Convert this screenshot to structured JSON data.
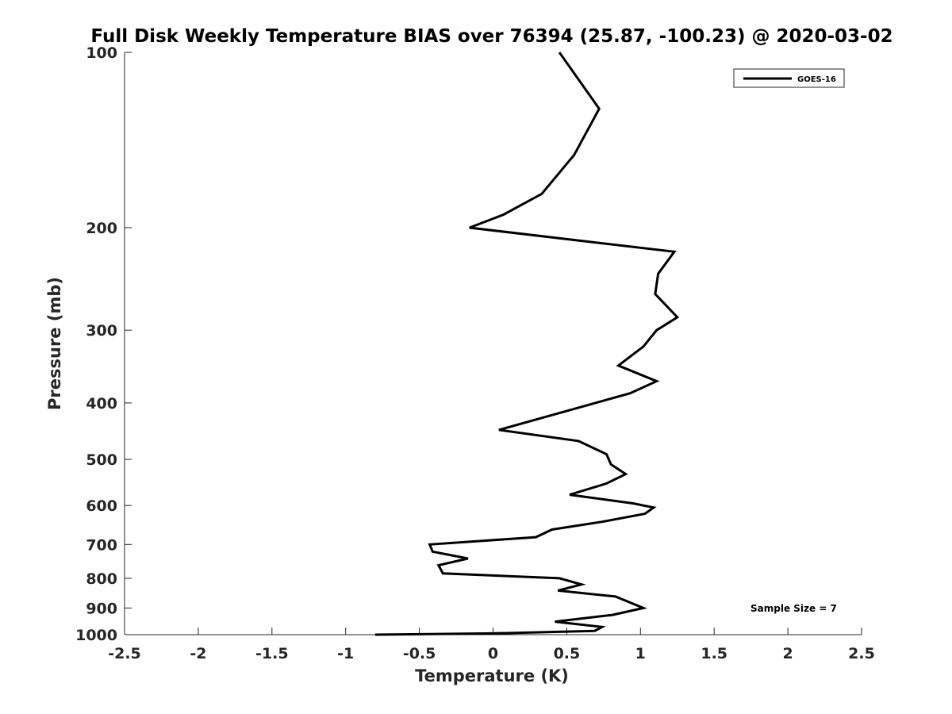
{
  "chart_data": {
    "type": "line",
    "title": "Full Disk Weekly Temperature BIAS over 76394 (25.87, -100.23) @ 2020-03-02",
    "xlabel": "Temperature (K)",
    "ylabel": "Pressure (mb)",
    "xlim": [
      -2.5,
      2.5
    ],
    "ylim": [
      1000,
      100
    ],
    "y_scale": "log",
    "y_reversed": true,
    "x_ticks": [
      -2.5,
      -2,
      -1.5,
      -1,
      -0.5,
      0,
      0.5,
      1,
      1.5,
      2,
      2.5
    ],
    "x_tick_labels": [
      "-2.5",
      "-2",
      "-1.5",
      "-1",
      "-0.5",
      "0",
      "0.5",
      "1",
      "1.5",
      "2",
      "2.5"
    ],
    "y_ticks": [
      100,
      200,
      300,
      400,
      500,
      600,
      700,
      800,
      900,
      1000
    ],
    "y_tick_labels": [
      "100",
      "200",
      "300",
      "400",
      "500",
      "600",
      "700",
      "800",
      "900",
      "1000"
    ],
    "grid": false,
    "legend_position": "top-right",
    "annotation": "Sample Size = 7",
    "series": [
      {
        "name": "GOES-16",
        "color": "#000000",
        "points": [
          {
            "x": 0.45,
            "p": 100
          },
          {
            "x": 0.72,
            "p": 125
          },
          {
            "x": 0.55,
            "p": 150
          },
          {
            "x": 0.33,
            "p": 175
          },
          {
            "x": 0.07,
            "p": 190
          },
          {
            "x": -0.16,
            "p": 200
          },
          {
            "x": 1.23,
            "p": 220
          },
          {
            "x": 1.12,
            "p": 240
          },
          {
            "x": 1.1,
            "p": 260
          },
          {
            "x": 1.25,
            "p": 285
          },
          {
            "x": 1.11,
            "p": 300
          },
          {
            "x": 1.02,
            "p": 320
          },
          {
            "x": 0.85,
            "p": 345
          },
          {
            "x": 1.11,
            "p": 367
          },
          {
            "x": 0.93,
            "p": 385
          },
          {
            "x": 0.04,
            "p": 445
          },
          {
            "x": 0.58,
            "p": 465
          },
          {
            "x": 0.77,
            "p": 490
          },
          {
            "x": 0.8,
            "p": 510
          },
          {
            "x": 0.9,
            "p": 530
          },
          {
            "x": 0.77,
            "p": 550
          },
          {
            "x": 0.52,
            "p": 575
          },
          {
            "x": 0.95,
            "p": 595
          },
          {
            "x": 1.09,
            "p": 605
          },
          {
            "x": 1.03,
            "p": 620
          },
          {
            "x": 0.74,
            "p": 640
          },
          {
            "x": 0.4,
            "p": 660
          },
          {
            "x": 0.29,
            "p": 680
          },
          {
            "x": -0.43,
            "p": 700
          },
          {
            "x": -0.41,
            "p": 720
          },
          {
            "x": -0.17,
            "p": 740
          },
          {
            "x": -0.37,
            "p": 760
          },
          {
            "x": -0.34,
            "p": 785
          },
          {
            "x": 0.45,
            "p": 800
          },
          {
            "x": 0.6,
            "p": 820
          },
          {
            "x": 0.44,
            "p": 840
          },
          {
            "x": 0.83,
            "p": 860
          },
          {
            "x": 1.02,
            "p": 900
          },
          {
            "x": 0.81,
            "p": 925
          },
          {
            "x": 0.42,
            "p": 950
          },
          {
            "x": 0.74,
            "p": 970
          },
          {
            "x": 0.69,
            "p": 985
          },
          {
            "x": 0.0,
            "p": 995
          },
          {
            "x": -0.8,
            "p": 1000
          }
        ]
      }
    ]
  }
}
